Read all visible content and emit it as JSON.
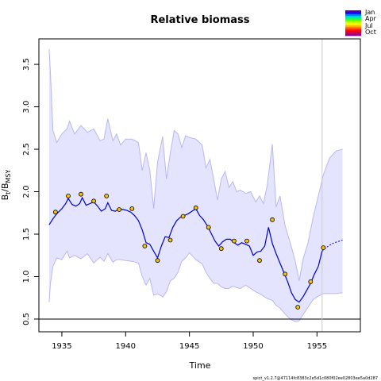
{
  "chart_data": {
    "type": "line",
    "title": "Relative biomass",
    "xlabel": "Time",
    "ylabel_base": "B",
    "ylabel_sub1": "t",
    "ylabel_sep": "/B",
    "ylabel_sub2": "MSY",
    "xlim": [
      1933.2,
      1958.4
    ],
    "ylim": [
      0.35,
      3.8
    ],
    "xticks": [
      1935,
      1940,
      1945,
      1950,
      1955
    ],
    "xtick_labels": [
      "1935",
      "1940",
      "1945",
      "1950",
      "1955"
    ],
    "yticks": [
      0.5,
      1.0,
      1.5,
      2.0,
      2.5,
      3.0,
      3.5
    ],
    "ytick_labels": [
      "0.5",
      "1.0",
      "1.5",
      "2.0",
      "2.5",
      "3.0",
      "3.5"
    ],
    "reference_line_y": 0.5,
    "vertical_line_x": 1955.4,
    "series": [
      {
        "role": "estimate",
        "color": "#0000cc",
        "x": [
          1934.0,
          1934.3,
          1934.6,
          1935.0,
          1935.3,
          1935.5,
          1935.8,
          1936.1,
          1936.4,
          1936.6,
          1936.9,
          1937.2,
          1937.5,
          1937.8,
          1938.1,
          1938.4,
          1938.6,
          1938.9,
          1939.2,
          1939.5,
          1939.8,
          1940.1,
          1940.4,
          1940.7,
          1941.0,
          1941.3,
          1941.6,
          1941.9,
          1942.2,
          1942.5,
          1942.8,
          1943.1,
          1943.4,
          1943.7,
          1944.0,
          1944.3,
          1944.6,
          1944.9,
          1945.2,
          1945.5,
          1945.8,
          1946.1,
          1946.4,
          1946.7,
          1947.0,
          1947.3,
          1947.6,
          1947.9,
          1948.2,
          1948.5,
          1948.8,
          1949.1,
          1949.4,
          1949.7,
          1950.0,
          1950.3,
          1950.6,
          1950.9,
          1951.2,
          1951.5,
          1951.8,
          1952.1,
          1952.4,
          1952.7,
          1953.0,
          1953.3,
          1953.6,
          1953.9,
          1954.2,
          1954.5,
          1954.8,
          1955.1,
          1955.4
        ],
        "y": [
          1.61,
          1.68,
          1.74,
          1.8,
          1.86,
          1.92,
          1.85,
          1.83,
          1.86,
          1.93,
          1.84,
          1.86,
          1.88,
          1.83,
          1.77,
          1.8,
          1.87,
          1.78,
          1.77,
          1.8,
          1.79,
          1.78,
          1.76,
          1.72,
          1.66,
          1.55,
          1.4,
          1.38,
          1.3,
          1.22,
          1.36,
          1.47,
          1.46,
          1.58,
          1.66,
          1.7,
          1.72,
          1.74,
          1.77,
          1.8,
          1.72,
          1.67,
          1.6,
          1.51,
          1.42,
          1.36,
          1.41,
          1.44,
          1.44,
          1.4,
          1.37,
          1.4,
          1.38,
          1.36,
          1.25,
          1.29,
          1.3,
          1.36,
          1.58,
          1.39,
          1.27,
          1.16,
          1.05,
          0.94,
          0.81,
          0.73,
          0.7,
          0.76,
          0.84,
          0.92,
          1.03,
          1.12,
          1.3
        ]
      },
      {
        "role": "forecast",
        "color": "#0000cc",
        "x": [
          1955.4,
          1955.8,
          1956.2,
          1956.6,
          1957.0
        ],
        "y": [
          1.3,
          1.35,
          1.39,
          1.41,
          1.43
        ]
      }
    ],
    "band": {
      "x": [
        1934.0,
        1934.1,
        1934.3,
        1934.6,
        1935.0,
        1935.4,
        1935.6,
        1936.0,
        1936.5,
        1937.0,
        1937.5,
        1938.0,
        1938.3,
        1938.6,
        1939.0,
        1939.3,
        1939.6,
        1940.0,
        1940.5,
        1941.0,
        1941.3,
        1941.6,
        1941.9,
        1942.2,
        1942.5,
        1942.9,
        1943.2,
        1943.5,
        1943.8,
        1944.1,
        1944.4,
        1944.7,
        1945.0,
        1945.5,
        1946.0,
        1946.3,
        1946.6,
        1946.9,
        1947.2,
        1947.5,
        1947.8,
        1948.1,
        1948.4,
        1948.7,
        1949.0,
        1949.4,
        1949.8,
        1950.2,
        1950.5,
        1950.8,
        1951.1,
        1951.5,
        1951.8,
        1952.1,
        1952.5,
        1952.9,
        1953.3,
        1953.6,
        1953.9,
        1954.3,
        1954.7,
        1955.1,
        1955.5,
        1956.0,
        1956.5,
        1957.0
      ],
      "upper": [
        3.68,
        3.4,
        2.72,
        2.58,
        2.68,
        2.74,
        2.83,
        2.68,
        2.78,
        2.7,
        2.74,
        2.6,
        2.62,
        2.86,
        2.6,
        2.68,
        2.55,
        2.62,
        2.62,
        2.58,
        2.25,
        2.46,
        2.25,
        1.8,
        2.35,
        2.65,
        2.15,
        2.45,
        2.72,
        2.68,
        2.52,
        2.66,
        2.64,
        2.62,
        2.55,
        2.28,
        2.38,
        2.15,
        1.9,
        2.15,
        2.24,
        2.05,
        2.12,
        2.0,
        2.02,
        1.98,
        2.0,
        1.88,
        1.95,
        1.86,
        2.08,
        2.56,
        1.82,
        1.95,
        1.6,
        1.4,
        1.18,
        0.95,
        1.2,
        1.4,
        1.7,
        1.95,
        2.2,
        2.4,
        2.48,
        2.5
      ],
      "lower": [
        0.7,
        0.92,
        1.12,
        1.22,
        1.2,
        1.3,
        1.22,
        1.25,
        1.21,
        1.27,
        1.16,
        1.23,
        1.18,
        1.27,
        1.17,
        1.2,
        1.2,
        1.19,
        1.18,
        1.16,
        1.0,
        0.9,
        0.98,
        0.78,
        0.8,
        0.76,
        0.82,
        0.95,
        0.98,
        1.05,
        1.18,
        1.22,
        1.28,
        1.2,
        1.15,
        1.05,
        0.98,
        0.92,
        0.92,
        0.88,
        0.86,
        0.86,
        0.89,
        0.87,
        0.86,
        0.9,
        0.86,
        0.82,
        0.8,
        0.77,
        0.74,
        0.72,
        0.66,
        0.63,
        0.56,
        0.5,
        0.47,
        0.48,
        0.55,
        0.64,
        0.73,
        0.77,
        0.8,
        0.8,
        0.8,
        0.81
      ],
      "color": "#e4e4ff",
      "edge_color": "#b8b8f0"
    },
    "observations": {
      "color": "#f5c400",
      "x": [
        1934.5,
        1935.5,
        1936.5,
        1937.5,
        1938.5,
        1939.5,
        1940.5,
        1941.5,
        1942.5,
        1943.5,
        1944.5,
        1945.5,
        1946.5,
        1947.5,
        1948.5,
        1949.5,
        1950.5,
        1951.5,
        1952.5,
        1953.5,
        1954.5,
        1955.5
      ],
      "y": [
        1.76,
        1.95,
        1.97,
        1.89,
        1.95,
        1.79,
        1.8,
        1.36,
        1.19,
        1.43,
        1.71,
        1.81,
        1.58,
        1.33,
        1.42,
        1.42,
        1.19,
        1.67,
        1.03,
        0.64,
        0.94,
        1.34
      ]
    },
    "legend": {
      "labels": [
        "Jan",
        "Apr",
        "Jul",
        "Oct"
      ],
      "colors": [
        "#5a00b4",
        "#0000ff",
        "#0080ff",
        "#00c8ff",
        "#00ff80",
        "#60ff00",
        "#c8ff00",
        "#ffff00",
        "#ffc000",
        "#ff8000",
        "#ff3000",
        "#ff0000",
        "#c00060",
        "#900090"
      ],
      "placement": "top-right"
    }
  },
  "footer": "spict_v1.2.7@47114fc8383c2e5d1c080f02ee02803ee5a0d287"
}
